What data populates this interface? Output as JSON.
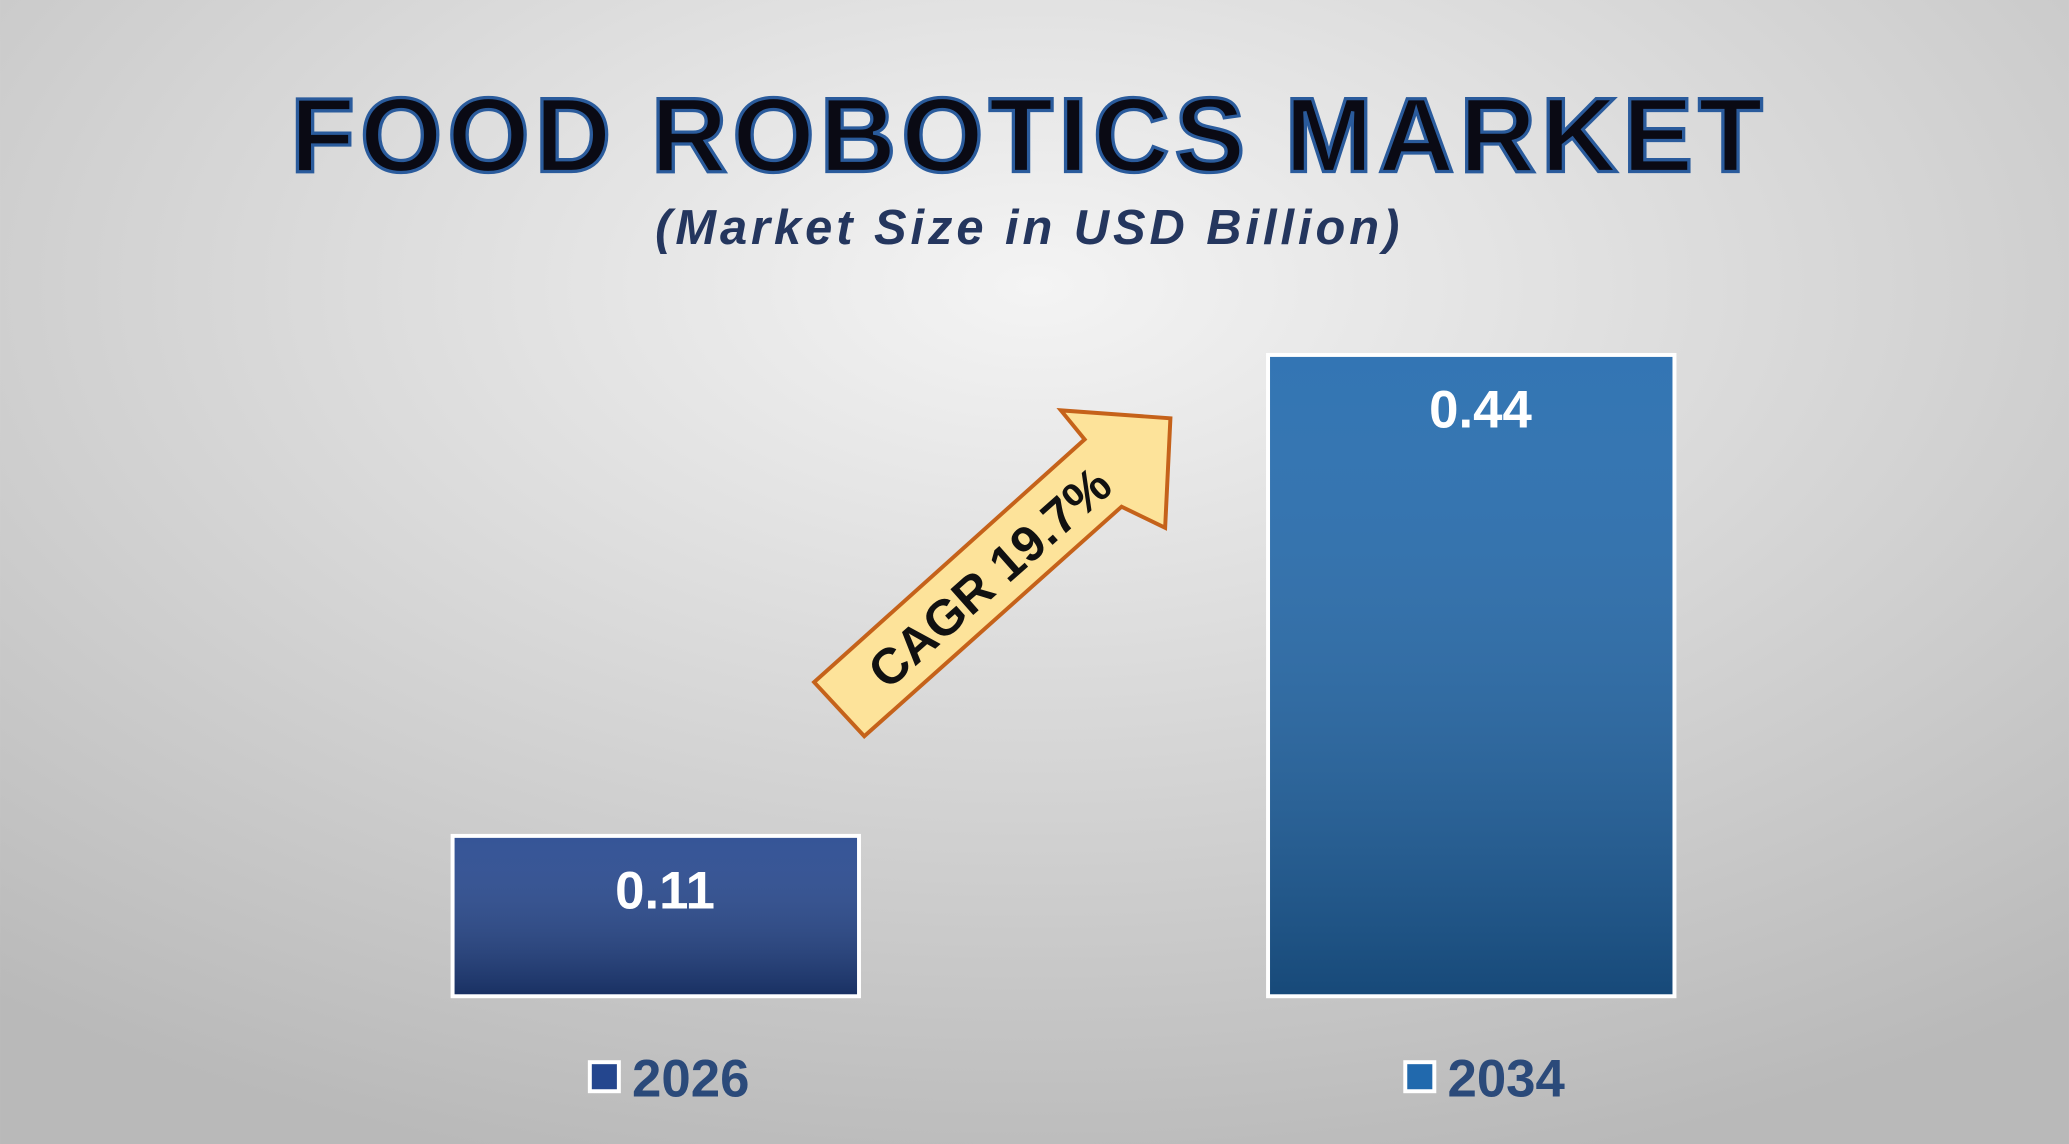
{
  "chart_data": {
    "type": "bar",
    "title": "FOOD ROBOTICS MARKET",
    "subtitle": "(Market Size in USD Billion)",
    "annotation": "CAGR 19.7%",
    "categories": [
      "2026",
      "2034"
    ],
    "values": [
      0.11,
      0.44
    ],
    "colors": [
      "#24468e",
      "#2169ad"
    ]
  }
}
